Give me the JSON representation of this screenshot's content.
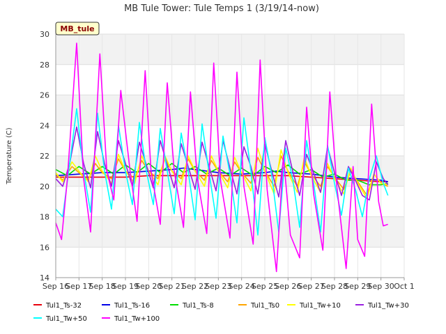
{
  "chart_data": {
    "type": "line",
    "title": "MB Tule Tower: Tule Temps 1 (3/19/14-now)",
    "xlabel": "",
    "ylabel": "Temperature (C)",
    "badge": "MB_tule",
    "ylim": [
      14,
      30
    ],
    "yticks": [
      14,
      16,
      18,
      20,
      22,
      24,
      26,
      28,
      30
    ],
    "xlim": [
      0,
      15
    ],
    "xtick_labels": [
      "Sep 16",
      "Sep 17",
      "Sep 18",
      "Sep 19",
      "Sep 20",
      "Sep 21",
      "Sep 22",
      "Sep 23",
      "Sep 24",
      "Sep 25",
      "Sep 26",
      "Sep 27",
      "Sep 28",
      "Sep 29",
      "Sep 30",
      "Oct 1"
    ],
    "grid": true,
    "legend_position": "bottom",
    "series": [
      {
        "name": "Tul1_Ts-32",
        "color": "#e8000b",
        "x": [
          0.0,
          1.0,
          2.0,
          3.0,
          4.0,
          5.0,
          6.0,
          7.0,
          8.0,
          9.0,
          10.0,
          11.0,
          12.0,
          13.0,
          14.0,
          14.3
        ],
        "y": [
          20.6,
          20.6,
          20.6,
          20.6,
          20.7,
          20.7,
          20.7,
          20.7,
          20.7,
          20.7,
          20.7,
          20.6,
          20.5,
          20.4,
          20.3,
          20.3
        ]
      },
      {
        "name": "Tul1_Ts-16",
        "color": "#0000e8",
        "x": [
          0.0,
          1.0,
          2.0,
          3.0,
          4.0,
          5.0,
          5.5,
          6.0,
          7.0,
          8.0,
          9.0,
          9.5,
          10.0,
          11.0,
          12.0,
          13.0,
          14.0,
          14.3
        ],
        "y": [
          20.7,
          20.8,
          20.9,
          20.9,
          21.0,
          21.1,
          21.2,
          21.1,
          20.9,
          20.8,
          20.9,
          21.0,
          20.9,
          20.8,
          20.6,
          20.5,
          20.4,
          20.3
        ]
      },
      {
        "name": "Tul1_Ts-8",
        "color": "#00dd00",
        "x": [
          0.0,
          0.5,
          1.0,
          1.5,
          2.0,
          2.5,
          3.0,
          3.5,
          4.0,
          4.5,
          5.0,
          5.5,
          6.0,
          6.5,
          7.0,
          7.5,
          8.0,
          8.5,
          9.0,
          9.5,
          10.0,
          10.5,
          11.0,
          11.5,
          12.0,
          12.5,
          13.0,
          13.5,
          14.0,
          14.3
        ],
        "y": [
          21.1,
          20.7,
          21.3,
          20.8,
          21.3,
          20.8,
          21.4,
          20.9,
          21.5,
          20.9,
          21.5,
          20.9,
          21.3,
          20.8,
          21.2,
          20.7,
          21.2,
          20.7,
          21.3,
          20.9,
          21.4,
          20.8,
          21.1,
          20.6,
          20.8,
          20.4,
          20.4,
          20.1,
          20.1,
          20.2
        ]
      },
      {
        "name": "Tul1_Ts0",
        "color": "#ffa500",
        "x": [
          0.0,
          0.3,
          0.7,
          1.0,
          1.4,
          1.7,
          2.0,
          2.4,
          2.7,
          3.0,
          3.4,
          3.7,
          4.0,
          4.4,
          4.7,
          5.0,
          5.4,
          5.7,
          6.0,
          6.4,
          6.7,
          7.0,
          7.4,
          7.7,
          8.0,
          8.4,
          8.7,
          9.0,
          9.4,
          9.7,
          10.0,
          10.4,
          10.7,
          11.0,
          11.4,
          11.7,
          12.0,
          12.4,
          12.7,
          13.0,
          13.4,
          13.7,
          14.0,
          14.3
        ],
        "y": [
          20.8,
          20.4,
          21.3,
          20.9,
          20.4,
          21.5,
          20.9,
          20.5,
          21.8,
          21.0,
          20.5,
          21.7,
          21.0,
          20.5,
          21.8,
          21.0,
          20.5,
          21.8,
          21.0,
          20.4,
          21.7,
          21.0,
          20.3,
          21.6,
          20.9,
          20.2,
          21.9,
          21.0,
          20.0,
          22.0,
          21.0,
          20.0,
          21.6,
          20.8,
          20.0,
          21.3,
          20.6,
          19.8,
          21.0,
          20.3,
          19.4,
          20.8,
          20.2,
          20.0
        ]
      },
      {
        "name": "Tul1_Tw+10",
        "color": "#ffff00",
        "x": [
          0.0,
          0.3,
          0.7,
          1.0,
          1.4,
          1.7,
          2.0,
          2.4,
          2.7,
          3.0,
          3.4,
          3.7,
          4.0,
          4.4,
          4.7,
          5.0,
          5.4,
          5.7,
          6.0,
          6.4,
          6.7,
          7.0,
          7.4,
          7.7,
          8.0,
          8.4,
          8.7,
          9.0,
          9.4,
          9.7,
          10.0,
          10.4,
          10.7,
          11.0,
          11.4,
          11.7,
          12.0,
          12.4,
          12.7,
          13.0,
          13.4,
          13.7,
          14.0,
          14.3
        ],
        "y": [
          20.9,
          20.3,
          21.6,
          21.0,
          20.3,
          22.0,
          21.0,
          20.2,
          22.1,
          21.0,
          20.2,
          22.0,
          21.0,
          20.1,
          22.0,
          21.0,
          20.1,
          22.0,
          21.0,
          20.0,
          22.0,
          21.0,
          19.9,
          21.9,
          20.9,
          19.7,
          22.5,
          21.0,
          19.5,
          22.4,
          20.9,
          19.6,
          21.9,
          20.7,
          19.6,
          21.5,
          20.5,
          19.5,
          21.2,
          20.2,
          19.2,
          20.8,
          20.2,
          20.1
        ]
      },
      {
        "name": "Tul1_Tw+30",
        "color": "#9a1fe0",
        "x": [
          0.0,
          0.3,
          0.6,
          0.9,
          1.2,
          1.5,
          1.8,
          2.1,
          2.4,
          2.7,
          3.0,
          3.3,
          3.6,
          3.9,
          4.2,
          4.5,
          4.8,
          5.1,
          5.4,
          5.7,
          6.0,
          6.3,
          6.6,
          6.9,
          7.2,
          7.5,
          7.8,
          8.1,
          8.4,
          8.7,
          9.0,
          9.3,
          9.6,
          9.9,
          10.2,
          10.5,
          10.8,
          11.1,
          11.4,
          11.7,
          12.0,
          12.3,
          12.6,
          12.9,
          13.2,
          13.5,
          13.8,
          14.1,
          14.3
        ],
        "y": [
          20.5,
          20.0,
          21.5,
          23.9,
          21.5,
          19.9,
          23.6,
          21.5,
          20.0,
          23.0,
          21.5,
          20.0,
          22.9,
          21.4,
          19.9,
          23.0,
          21.4,
          19.9,
          22.8,
          21.3,
          19.8,
          22.9,
          21.3,
          19.7,
          23.0,
          21.2,
          19.5,
          22.6,
          21.3,
          19.5,
          22.8,
          21.0,
          19.3,
          23.0,
          21.0,
          19.4,
          22.1,
          20.9,
          19.6,
          22.6,
          20.9,
          19.4,
          21.3,
          20.4,
          19.4,
          19.1,
          21.6,
          20.5,
          20.1
        ]
      },
      {
        "name": "Tul1_Tw+50",
        "color": "#00ffff",
        "x": [
          0.0,
          0.3,
          0.6,
          0.9,
          1.2,
          1.5,
          1.8,
          2.1,
          2.4,
          2.7,
          3.0,
          3.3,
          3.6,
          3.9,
          4.2,
          4.5,
          4.8,
          5.1,
          5.4,
          5.7,
          6.0,
          6.3,
          6.6,
          6.9,
          7.2,
          7.5,
          7.8,
          8.1,
          8.4,
          8.7,
          9.0,
          9.3,
          9.6,
          9.9,
          10.2,
          10.5,
          10.8,
          11.1,
          11.4,
          11.7,
          12.0,
          12.3,
          12.6,
          12.9,
          13.2,
          13.5,
          13.8,
          14.1,
          14.3
        ],
        "y": [
          18.5,
          18.0,
          21.5,
          25.1,
          21.0,
          18.3,
          24.8,
          21.0,
          18.5,
          24.0,
          21.0,
          18.8,
          24.2,
          21.0,
          18.8,
          23.8,
          21.0,
          18.2,
          23.5,
          21.0,
          17.8,
          24.1,
          20.9,
          17.9,
          23.3,
          20.8,
          17.6,
          24.5,
          21.0,
          16.8,
          23.2,
          20.7,
          17.0,
          22.5,
          20.5,
          17.3,
          23.0,
          20.2,
          17.0,
          22.7,
          20.2,
          18.1,
          21.2,
          19.8,
          18.0,
          20.5,
          22.0,
          20.2,
          19.4
        ]
      },
      {
        "name": "Tul1_Tw+100",
        "color": "#ff00ff",
        "x": [
          0.0,
          0.25,
          0.5,
          0.9,
          1.2,
          1.5,
          1.9,
          2.2,
          2.5,
          2.8,
          3.2,
          3.5,
          3.85,
          4.1,
          4.5,
          4.8,
          5.1,
          5.5,
          5.8,
          6.1,
          6.5,
          6.8,
          7.1,
          7.5,
          7.8,
          8.1,
          8.5,
          8.8,
          9.1,
          9.5,
          9.8,
          10.1,
          10.5,
          10.8,
          11.1,
          11.5,
          11.8,
          12.1,
          12.5,
          12.8,
          13.0,
          13.3,
          13.6,
          13.9,
          14.1,
          14.3
        ],
        "y": [
          17.6,
          16.5,
          20.5,
          29.4,
          20.5,
          17.0,
          28.7,
          21.0,
          19.1,
          26.3,
          21.0,
          17.7,
          27.6,
          21.0,
          17.5,
          26.8,
          21.0,
          17.3,
          26.2,
          20.5,
          16.9,
          28.1,
          20.3,
          16.6,
          27.5,
          20.0,
          16.2,
          28.3,
          19.8,
          14.4,
          22.0,
          16.8,
          15.3,
          25.2,
          19.5,
          15.8,
          26.2,
          20.0,
          14.6,
          21.3,
          16.5,
          15.4,
          25.4,
          19.0,
          17.4,
          17.5
        ]
      }
    ]
  }
}
